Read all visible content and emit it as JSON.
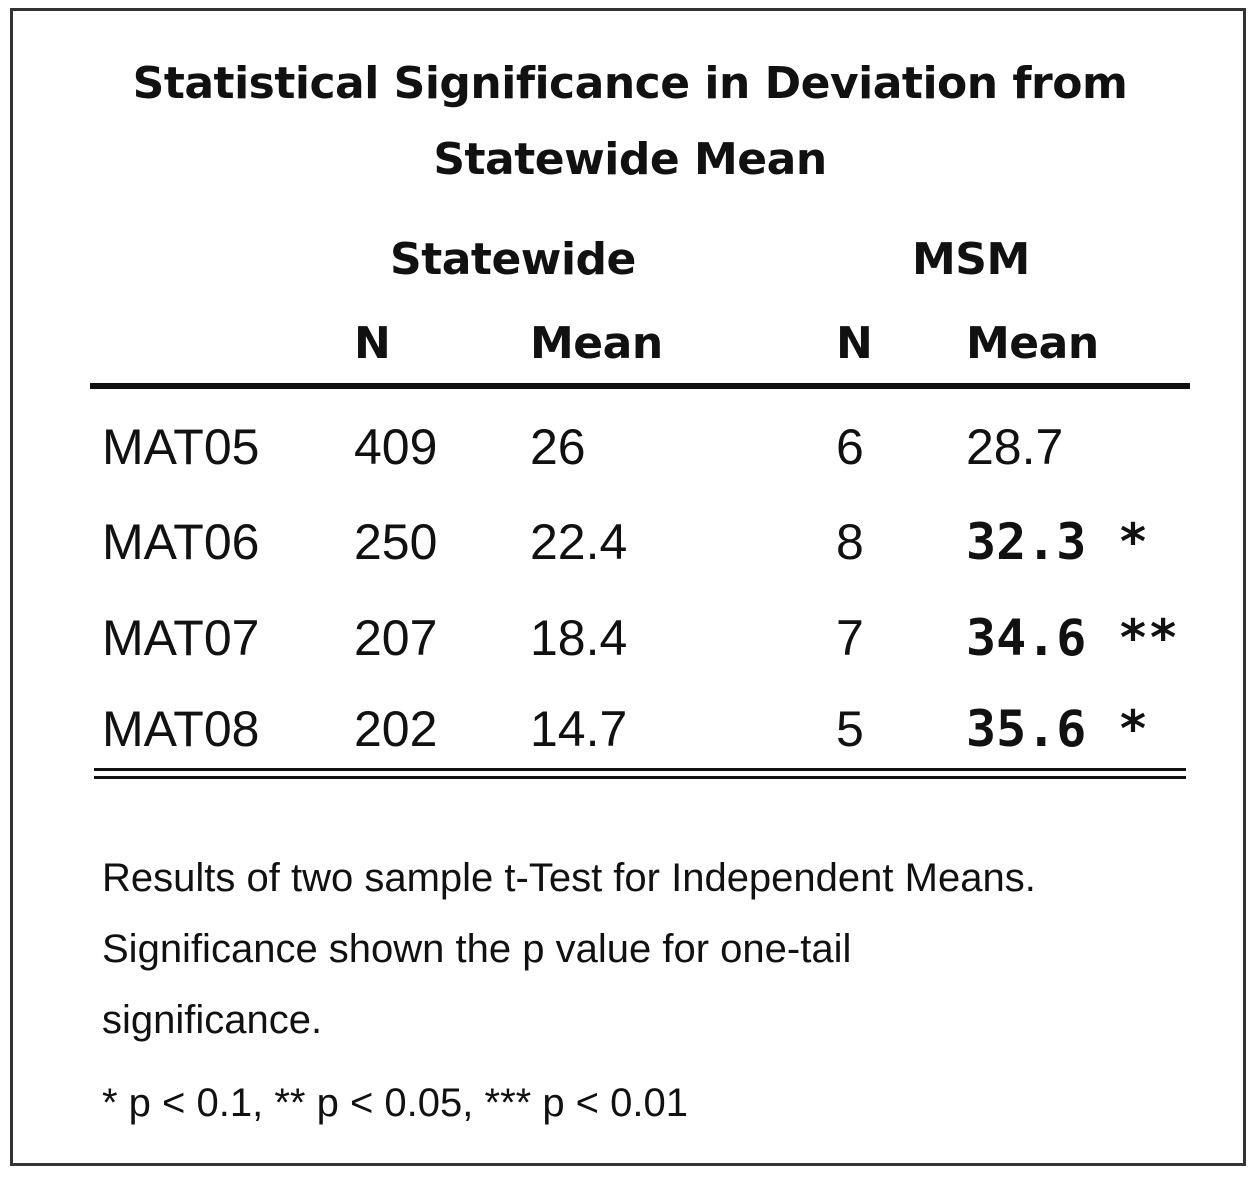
{
  "chart_data": {
    "type": "table",
    "title_line1": "Statistical Significance in Deviation from",
    "title_line2": "Statewide Mean",
    "groups": [
      "Statewide",
      "MSM"
    ],
    "columns": [
      "N",
      "Mean",
      "N",
      "Mean"
    ],
    "rows": [
      {
        "label": "MAT05",
        "statewide_n": "409",
        "statewide_mean": "26",
        "msm_n": "6",
        "msm_mean": "28.7",
        "stars": ""
      },
      {
        "label": "MAT06",
        "statewide_n": "250",
        "statewide_mean": "22.4",
        "msm_n": "8",
        "msm_mean": "32.3",
        "stars": "*"
      },
      {
        "label": "MAT07",
        "statewide_n": "207",
        "statewide_mean": "18.4",
        "msm_n": "7",
        "msm_mean": "34.6",
        "stars": "**"
      },
      {
        "label": "MAT08",
        "statewide_n": "202",
        "statewide_mean": "14.7",
        "msm_n": "5",
        "msm_mean": "35.6",
        "stars": "*"
      }
    ],
    "notes": [
      "Results of two sample t-Test for Independent Means.",
      "Significance shown the p value for one-tail",
      "significance.",
      "* p < 0.1, ** p < 0.05, *** p < 0.01"
    ]
  }
}
